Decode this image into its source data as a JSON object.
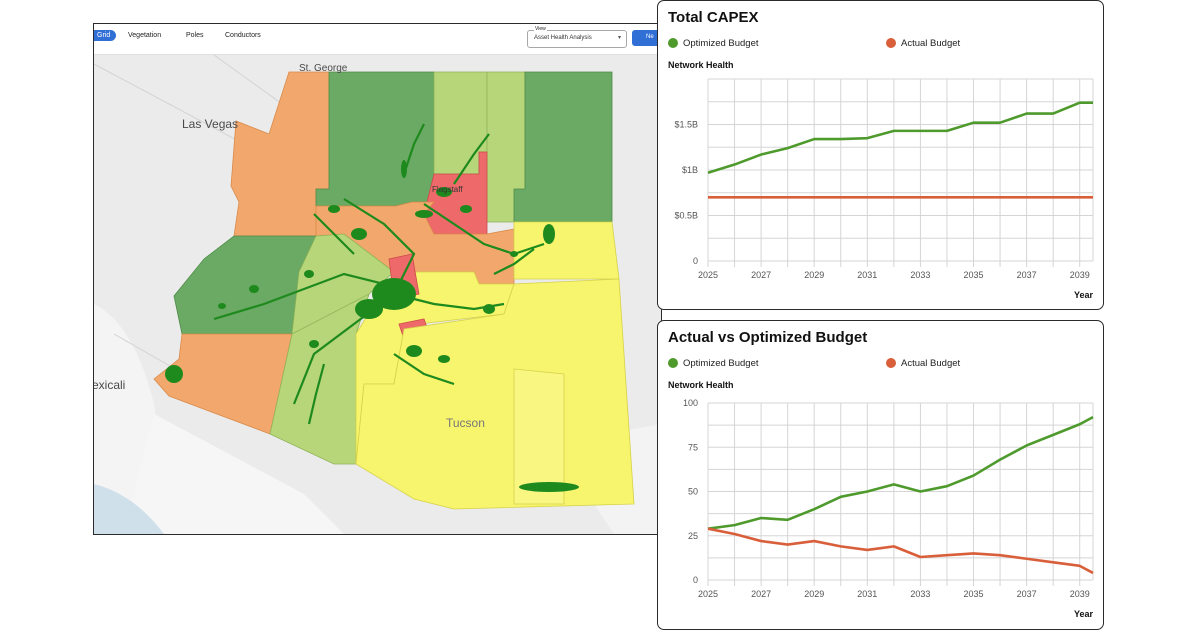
{
  "toolbar": {
    "tabs": [
      "Grid",
      "Vegetation",
      "Poles",
      "Conductors"
    ],
    "view_caption": "View",
    "view_value": "Asset Health Analysis",
    "next_label": "Ne"
  },
  "map": {
    "labels": {
      "st_george": "St. George",
      "las_vegas": "Las Vegas",
      "mexicali": "exicali",
      "tucson": "Tucson",
      "flagstaff": "Flagstaff"
    },
    "colors": {
      "dark_green": "#6aaa64",
      "light_green": "#b7d67a",
      "orange": "#f2a86c",
      "red": "#ee6a6a",
      "yellow": "#f7f46d",
      "network": "#1e8a1e"
    }
  },
  "charts": [
    {
      "title": "Total CAPEX",
      "ylabel": "Network Health",
      "xtitle": "Year",
      "legend": [
        {
          "label": "Optimized Budget",
          "color": "#4e9a2c"
        },
        {
          "label": "Actual Budget",
          "color": "#d95f3b"
        }
      ],
      "chart_data": {
        "type": "line",
        "x": [
          2025,
          2026,
          2027,
          2028,
          2029,
          2030,
          2031,
          2032,
          2033,
          2034,
          2035,
          2036,
          2037,
          2038,
          2039,
          2039.5
        ],
        "series": [
          {
            "name": "Optimized Budget",
            "values": [
              0.97,
              1.06,
              1.17,
              1.24,
              1.34,
              1.34,
              1.35,
              1.43,
              1.43,
              1.43,
              1.52,
              1.52,
              1.62,
              1.62,
              1.74,
              1.74
            ]
          },
          {
            "name": "Actual Budget",
            "values": [
              0.7,
              0.7,
              0.7,
              0.7,
              0.7,
              0.7,
              0.7,
              0.7,
              0.7,
              0.7,
              0.7,
              0.7,
              0.7,
              0.7,
              0.7,
              0.7
            ]
          }
        ],
        "xticks": [
          "2025",
          "2027",
          "2029",
          "2031",
          "2033",
          "2035",
          "2037",
          "2039"
        ],
        "yticks": [
          0,
          0.5,
          1,
          1.5
        ],
        "ytick_labels": [
          "0",
          "$0.5B",
          "$1B",
          "$1.5B"
        ],
        "ylim": [
          0,
          2.0
        ],
        "xlim": [
          2025,
          2039.5
        ]
      }
    },
    {
      "title": "Actual vs Optimized Budget",
      "ylabel": "Network Health",
      "xtitle": "Year",
      "legend": [
        {
          "label": "Optimized Budget",
          "color": "#4e9a2c"
        },
        {
          "label": "Actual Budget",
          "color": "#d95f3b"
        }
      ],
      "chart_data": {
        "type": "line",
        "x": [
          2025,
          2026,
          2027,
          2028,
          2029,
          2030,
          2031,
          2032,
          2033,
          2034,
          2035,
          2036,
          2037,
          2038,
          2039,
          2039.5
        ],
        "series": [
          {
            "name": "Optimized Budget",
            "values": [
              29,
              31,
              35,
              34,
              40,
              47,
              50,
              54,
              50,
              53,
              59,
              68,
              76,
              82,
              88,
              92
            ]
          },
          {
            "name": "Actual Budget",
            "values": [
              29,
              26,
              22,
              20,
              22,
              19,
              17,
              19,
              13,
              14,
              15,
              14,
              12,
              10,
              8,
              4
            ]
          }
        ],
        "xticks": [
          "2025",
          "2027",
          "2029",
          "2031",
          "2033",
          "2035",
          "2037",
          "2039"
        ],
        "yticks": [
          0,
          25,
          50,
          75,
          100
        ],
        "ytick_labels": [
          "0",
          "25",
          "50",
          "75",
          "100"
        ],
        "ylim": [
          0,
          100
        ],
        "xlim": [
          2025,
          2039.5
        ]
      }
    }
  ]
}
